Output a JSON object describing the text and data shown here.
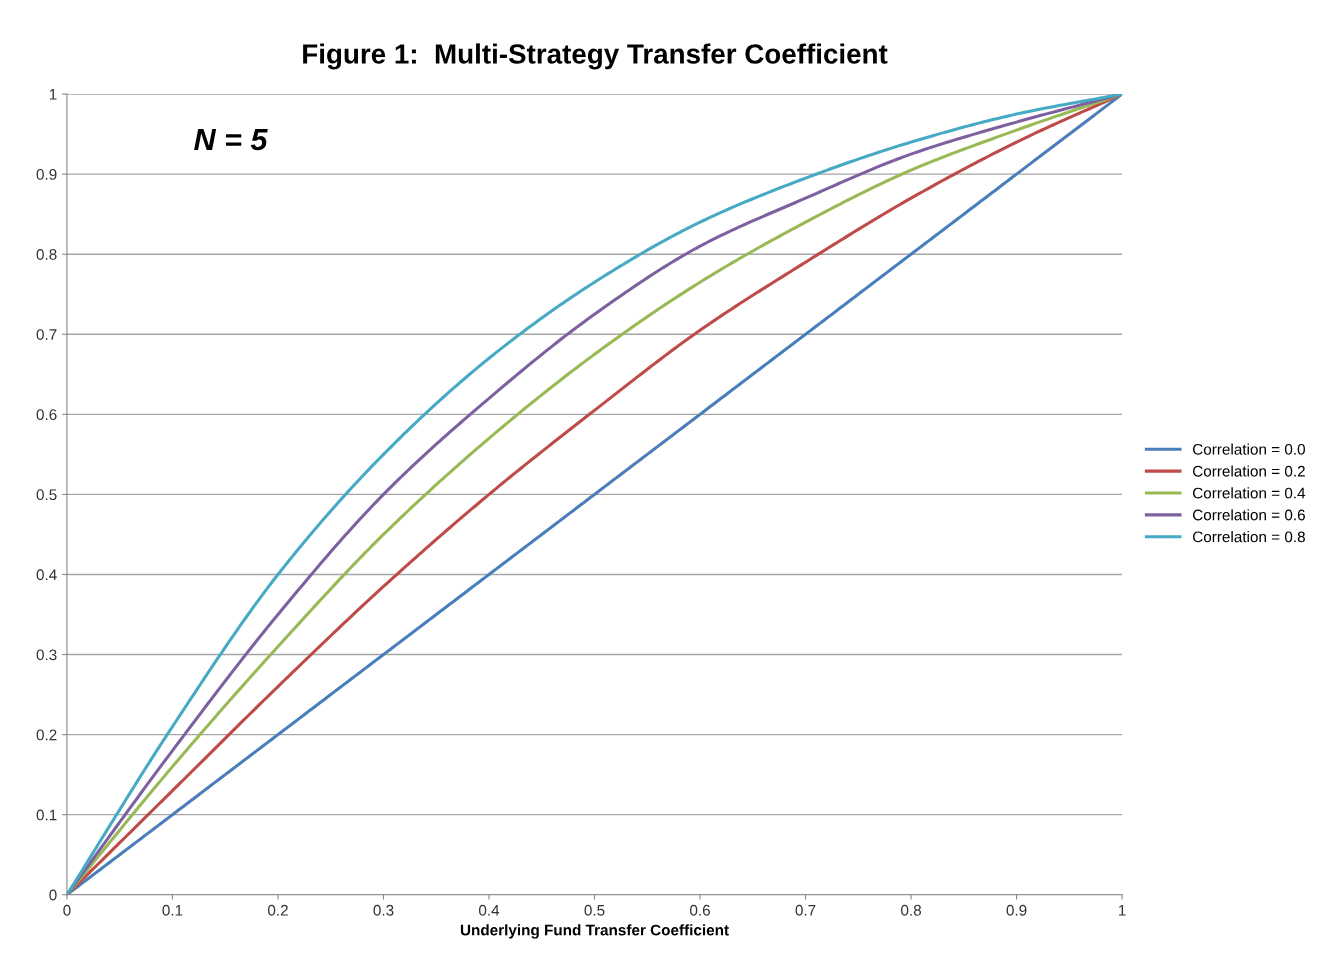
{
  "chart_data": {
    "type": "line",
    "title": "Figure 1:  Multi-Strategy Transfer Coefficient",
    "xlabel": "Underlying Fund Transfer Coefficient",
    "annotations": [
      "N = 5"
    ],
    "x": [
      0,
      0.1,
      0.2,
      0.3,
      0.4,
      0.5,
      0.6,
      0.7,
      0.8,
      0.9,
      1
    ],
    "series": [
      {
        "name": "Correlation = 0.0",
        "color": "#4a7ebb",
        "values": [
          0,
          0.1,
          0.2,
          0.3,
          0.4,
          0.5,
          0.6,
          0.7,
          0.8,
          0.9,
          1
        ]
      },
      {
        "name": "Correlation = 0.2",
        "color": "#be4b48",
        "values": [
          0,
          0.13,
          0.26,
          0.385,
          0.5,
          0.605,
          0.705,
          0.79,
          0.87,
          0.94,
          1
        ]
      },
      {
        "name": "Correlation = 0.4",
        "color": "#98b954",
        "values": [
          0,
          0.16,
          0.31,
          0.45,
          0.57,
          0.675,
          0.765,
          0.84,
          0.905,
          0.955,
          1
        ]
      },
      {
        "name": "Correlation = 0.6",
        "color": "#7d60a0",
        "values": [
          0,
          0.18,
          0.35,
          0.5,
          0.62,
          0.725,
          0.81,
          0.87,
          0.925,
          0.965,
          1
        ]
      },
      {
        "name": "Correlation = 0.8",
        "color": "#46aac5",
        "values": [
          0,
          0.21,
          0.4,
          0.55,
          0.67,
          0.765,
          0.84,
          0.895,
          0.94,
          0.975,
          1
        ]
      }
    ],
    "xlim": [
      0,
      1
    ],
    "ylim": [
      0,
      1
    ],
    "xticks": [
      0,
      0.1,
      0.2,
      0.3,
      0.4,
      0.5,
      0.6,
      0.7,
      0.8,
      0.9,
      1
    ],
    "yticks": [
      0,
      0.1,
      0.2,
      0.3,
      0.4,
      0.5,
      0.6,
      0.7,
      0.8,
      0.9,
      1
    ],
    "grid": "y",
    "legend": "right",
    "marker": "none",
    "line_style": "solid"
  }
}
